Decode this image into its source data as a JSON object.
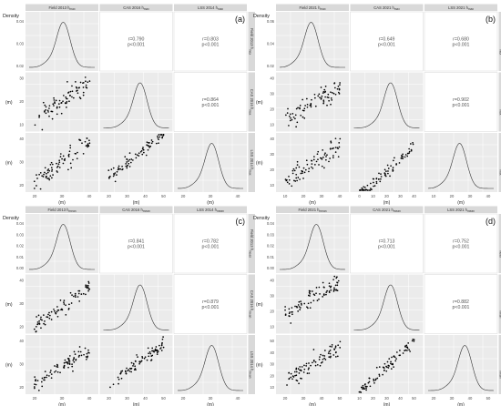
{
  "figure": {
    "panels": [
      {
        "id": "a",
        "letter": "(a)",
        "headers": [
          "Field 2013 h_max",
          "CAS 2016 h_max",
          "LSS 2014 h_max"
        ],
        "diag_ylabel": "Density",
        "diag_yticks": [
          "0.04",
          "0.03",
          "0.02"
        ],
        "row_ylabel": "(m)",
        "row_yticks": [
          [
            "30",
            "20",
            "10"
          ],
          [
            "40",
            "30",
            "20"
          ]
        ],
        "x_label": "(m)",
        "x_ticks": [
          [
            "20",
            "30",
            "40"
          ],
          [
            "20",
            "30",
            "40",
            "50"
          ],
          [
            "20",
            "30",
            "40"
          ]
        ],
        "correlations": [
          {
            "r": "r=0.790",
            "p": "p<0.001"
          },
          {
            "r": "r=0.803",
            "p": "p<0.001"
          },
          {
            "r": "r=0.864",
            "p": "p<0.001"
          }
        ]
      },
      {
        "id": "b",
        "letter": "(b)",
        "headers": [
          "Field 2021 h_max",
          "CAS 2021 h_max",
          "LSS 2021 h_max"
        ],
        "diag_ylabel": "Density",
        "diag_yticks": [
          "0.06",
          "0.04",
          "0.02"
        ],
        "row_ylabel": "(m)",
        "row_yticks": [
          [
            "40",
            "30",
            "20",
            "10"
          ],
          [
            "40",
            "30",
            "20",
            "10"
          ]
        ],
        "x_label": "(m)",
        "x_ticks": [
          [
            "10",
            "20",
            "30",
            "40"
          ],
          [
            "0",
            "10",
            "20",
            "30",
            "40"
          ],
          [
            "10",
            "20",
            "30",
            "40"
          ]
        ],
        "correlations": [
          {
            "r": "r=0.649",
            "p": "p<0.001"
          },
          {
            "r": "r=0.680",
            "p": "p<0.001"
          },
          {
            "r": "r=0.902",
            "p": "p<0.001"
          }
        ]
      },
      {
        "id": "c",
        "letter": "(c)",
        "headers": [
          "Field 2013 h_mean",
          "CAS 2016 h_mean",
          "LSS 2014 h_mean"
        ],
        "diag_ylabel": "Density",
        "diag_yticks": [
          "0.04",
          "0.03",
          "0.02",
          "0.01",
          "0.00"
        ],
        "row_ylabel": "(m)",
        "row_yticks": [
          [
            "40",
            "30",
            "20"
          ],
          [
            "40",
            "30",
            "20"
          ]
        ],
        "x_label": "(m)",
        "x_ticks": [
          [
            "20",
            "30",
            "40"
          ],
          [
            "20",
            "30",
            "40",
            "50"
          ],
          [
            "20",
            "30",
            "40"
          ]
        ],
        "correlations": [
          {
            "r": "r=0.841",
            "p": "p<0.001"
          },
          {
            "r": "r=0.782",
            "p": "p<0.001"
          },
          {
            "r": "r=0.879",
            "p": "p<0.001"
          }
        ]
      },
      {
        "id": "d",
        "letter": "(d)",
        "headers": [
          "Field 2021 h_mean",
          "CAS 2021 h_mean",
          "LSS 2021 h_mean"
        ],
        "diag_ylabel": "Density",
        "diag_yticks": [
          "0.04",
          "0.03",
          "0.02",
          "0.01",
          "0.00"
        ],
        "row_ylabel": "(m)",
        "row_yticks": [
          [
            "40",
            "30",
            "20",
            "10"
          ],
          [
            "50",
            "40",
            "30",
            "20",
            "10"
          ]
        ],
        "x_label": "(m)",
        "x_ticks": [
          [
            "20",
            "30",
            "40",
            "50"
          ],
          [
            "10",
            "20",
            "30",
            "40",
            "50"
          ],
          [
            "20",
            "30",
            "40",
            "50"
          ]
        ],
        "correlations": [
          {
            "r": "r=0.713",
            "p": "p<0.001"
          },
          {
            "r": "r=0.752",
            "p": "p<0.001"
          },
          {
            "r": "r=0.882",
            "p": "p<0.001"
          }
        ]
      }
    ]
  },
  "chart_data": [
    {
      "type": "scatter",
      "title": "(a)",
      "variables": [
        "Field 2013 h_max",
        "CAS 2016 h_max",
        "LSS 2014 h_max"
      ],
      "density_peaks": [
        31,
        33,
        31
      ],
      "pairs": [
        {
          "x": "Field 2013 h_max",
          "y": "CAS 2016 h_max",
          "r": 0.79,
          "p": "<0.001",
          "x_range": [
            15,
            45
          ],
          "y_range": [
            8,
            40
          ],
          "slope": 0.95,
          "intercept": -4,
          "noise": 4.5
        },
        {
          "x": "Field 2013 h_max",
          "y": "LSS 2014 h_max",
          "r": 0.803,
          "p": "<0.001",
          "x_range": [
            15,
            45
          ],
          "y_range": [
            14,
            45
          ],
          "slope": 0.9,
          "intercept": 3,
          "noise": 4
        },
        {
          "x": "CAS 2016 h_max",
          "y": "LSS 2014 h_max",
          "r": 0.864,
          "p": "<0.001",
          "x_range": [
            15,
            55
          ],
          "y_range": [
            14,
            45
          ],
          "slope": 0.75,
          "intercept": 7,
          "noise": 3
        }
      ]
    },
    {
      "type": "scatter",
      "title": "(b)",
      "variables": [
        "Field 2021 h_max",
        "CAS 2021 h_max",
        "LSS 2021 h_max"
      ],
      "density_peaks": [
        29,
        33,
        29
      ],
      "pairs": [
        {
          "x": "Field 2021 h_max",
          "y": "CAS 2021 h_max",
          "r": 0.649,
          "p": "<0.001",
          "x_range": [
            5,
            45
          ],
          "y_range": [
            5,
            48
          ],
          "slope": 0.8,
          "intercept": 5,
          "noise": 6
        },
        {
          "x": "Field 2021 h_max",
          "y": "LSS 2021 h_max",
          "r": 0.68,
          "p": "<0.001",
          "x_range": [
            5,
            45
          ],
          "y_range": [
            5,
            48
          ],
          "slope": 0.8,
          "intercept": 5,
          "noise": 6
        },
        {
          "x": "CAS 2021 h_max",
          "y": "LSS 2021 h_max",
          "r": 0.902,
          "p": "<0.001",
          "x_range": [
            0,
            45
          ],
          "y_range": [
            5,
            48
          ],
          "slope": 1.05,
          "intercept": -4,
          "noise": 3.5
        }
      ]
    },
    {
      "type": "scatter",
      "title": "(c)",
      "variables": [
        "Field 2013 h_mean",
        "CAS 2016 h_mean",
        "LSS 2014 h_mean"
      ],
      "density_peaks": [
        31,
        33,
        31
      ],
      "pairs": [
        {
          "x": "Field 2013 h_mean",
          "y": "CAS 2016 h_mean",
          "r": 0.841,
          "p": "<0.001",
          "x_range": [
            15,
            45
          ],
          "y_range": [
            14,
            50
          ],
          "slope": 1.05,
          "intercept": -1,
          "noise": 3.5
        },
        {
          "x": "Field 2013 h_mean",
          "y": "LSS 2014 h_mean",
          "r": 0.782,
          "p": "<0.001",
          "x_range": [
            15,
            45
          ],
          "y_range": [
            14,
            50
          ],
          "slope": 0.95,
          "intercept": 2,
          "noise": 4
        },
        {
          "x": "CAS 2016 h_mean",
          "y": "LSS 2014 h_mean",
          "r": 0.879,
          "p": "<0.001",
          "x_range": [
            15,
            55
          ],
          "y_range": [
            14,
            50
          ],
          "slope": 0.8,
          "intercept": 5,
          "noise": 3
        }
      ]
    },
    {
      "type": "scatter",
      "title": "(d)",
      "variables": [
        "Field 2021 h_mean",
        "CAS 2021 h_mean",
        "LSS 2021 h_mean"
      ],
      "density_peaks": [
        33,
        33,
        33
      ],
      "pairs": [
        {
          "x": "Field 2021 h_mean",
          "y": "CAS 2021 h_mean",
          "r": 0.713,
          "p": "<0.001",
          "x_range": [
            12,
            52
          ],
          "y_range": [
            8,
            50
          ],
          "slope": 0.75,
          "intercept": 10,
          "noise": 5
        },
        {
          "x": "Field 2021 h_mean",
          "y": "LSS 2021 h_mean",
          "r": 0.752,
          "p": "<0.001",
          "x_range": [
            12,
            52
          ],
          "y_range": [
            8,
            55
          ],
          "slope": 0.9,
          "intercept": 3,
          "noise": 5
        },
        {
          "x": "CAS 2021 h_mean",
          "y": "LSS 2021 h_mean",
          "r": 0.882,
          "p": "<0.001",
          "x_range": [
            5,
            55
          ],
          "y_range": [
            8,
            55
          ],
          "slope": 1.1,
          "intercept": -3,
          "noise": 3.5
        }
      ]
    }
  ]
}
